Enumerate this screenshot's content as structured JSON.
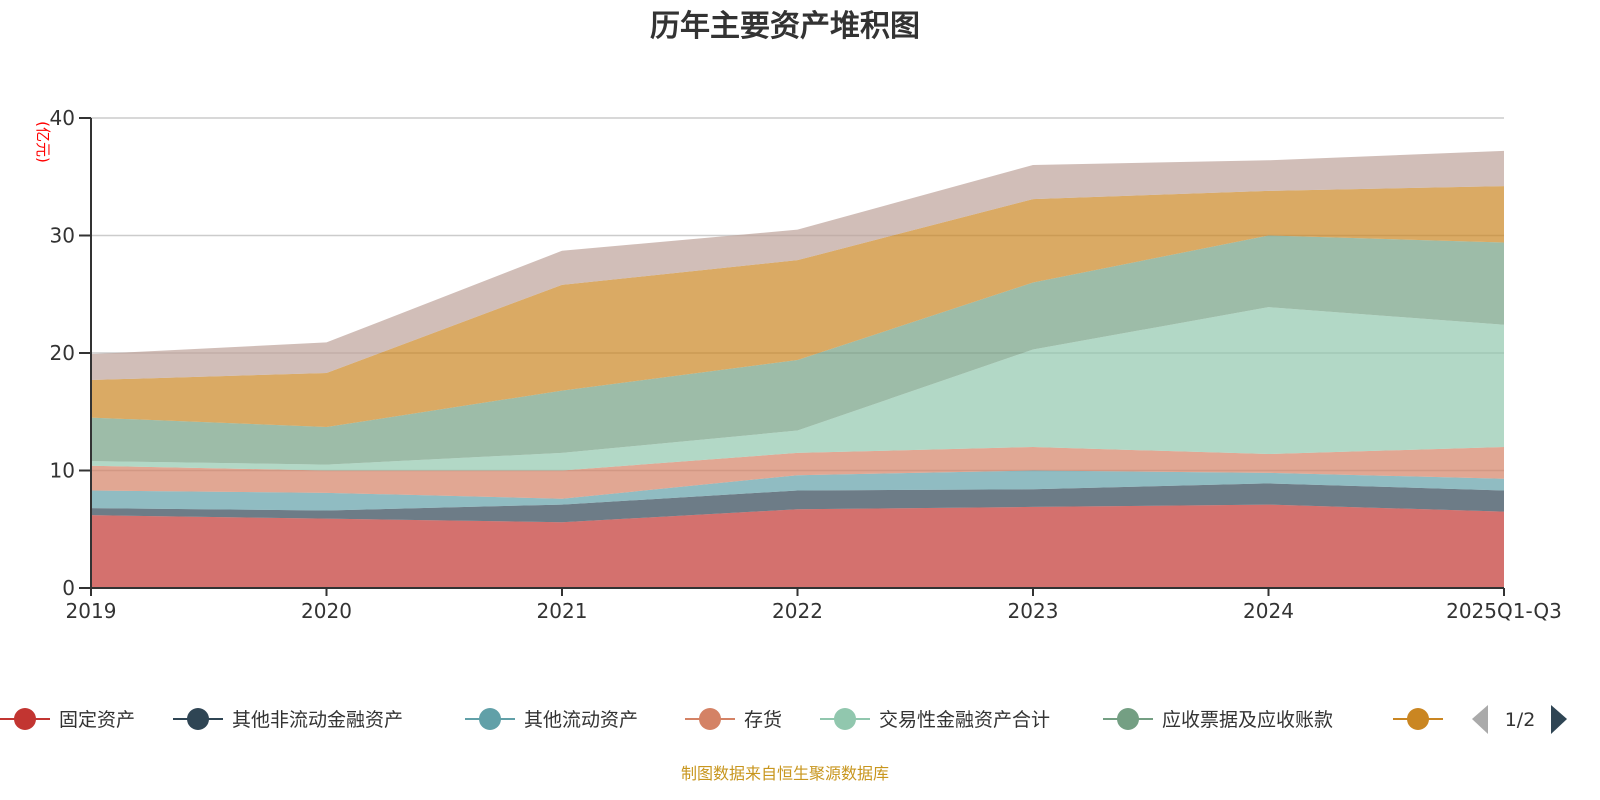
{
  "chart_data": {
    "type": "area",
    "stacked": true,
    "title": "历年主要资产堆积图",
    "ylabel": "(亿元)",
    "xlabel": "",
    "ylim": [
      0,
      40
    ],
    "yticks": [
      "0",
      "10",
      "20",
      "30",
      "40"
    ],
    "grid": true,
    "categories": [
      "2019",
      "2020",
      "2021",
      "2022",
      "2023",
      "2024",
      "2025Q1-Q3"
    ],
    "series": [
      {
        "name": "固定资产",
        "color": "#c23531",
        "values": [
          6.2,
          5.9,
          5.6,
          6.7,
          6.9,
          7.1,
          6.5
        ]
      },
      {
        "name": "其他非流动金融资产",
        "color": "#2f4554",
        "values": [
          0.6,
          0.7,
          1.5,
          1.6,
          1.5,
          1.8,
          1.8
        ]
      },
      {
        "name": "其他流动资产",
        "color": "#61a0a8",
        "values": [
          1.5,
          1.5,
          0.5,
          1.3,
          1.6,
          0.9,
          1.0
        ]
      },
      {
        "name": "存货",
        "color": "#d48265",
        "values": [
          2.1,
          1.9,
          2.4,
          1.9,
          2.0,
          1.6,
          2.7
        ]
      },
      {
        "name": "交易性金融资产合计",
        "color": "#91c7ae",
        "values": [
          0.4,
          0.5,
          1.5,
          1.9,
          8.3,
          12.5,
          10.4
        ]
      },
      {
        "name": "应收票据及应收账款",
        "color": "#749f83",
        "values": [
          3.7,
          3.2,
          5.3,
          6.0,
          5.7,
          6.1,
          7.0
        ]
      },
      {
        "name": "",
        "color": "#ca8622",
        "values": [
          3.2,
          4.6,
          9.0,
          8.5,
          7.1,
          3.8,
          4.8
        ]
      },
      {
        "name": "",
        "color": "#bda29a",
        "values": [
          2.2,
          2.6,
          2.9,
          2.6,
          2.9,
          2.6,
          3.0
        ]
      }
    ],
    "legend": {
      "position": "bottom",
      "page": "1/2"
    }
  },
  "source": "制图数据来自恒生聚源数据库"
}
